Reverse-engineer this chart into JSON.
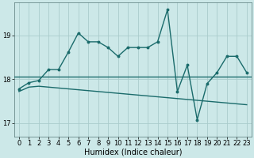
{
  "title": "",
  "xlabel": "Humidex (Indice chaleur)",
  "bg_color": "#cce8e8",
  "grid_color": "#aacccc",
  "line_color": "#1a6b6b",
  "hline_color": "#1a6b6b",
  "ylim": [
    16.7,
    19.75
  ],
  "xlim": [
    -0.5,
    23.5
  ],
  "yticks": [
    17,
    18,
    19
  ],
  "xticks": [
    0,
    1,
    2,
    3,
    4,
    5,
    6,
    7,
    8,
    9,
    10,
    11,
    12,
    13,
    14,
    15,
    16,
    17,
    18,
    19,
    20,
    21,
    22,
    23
  ],
  "curve1_x": [
    0,
    1,
    2,
    3,
    4,
    5,
    6,
    7,
    8,
    9,
    10,
    11,
    12,
    13,
    14,
    15,
    16,
    17,
    18,
    19,
    20,
    21,
    22,
    23
  ],
  "curve1_y": [
    17.78,
    17.92,
    17.97,
    18.22,
    18.22,
    18.62,
    19.05,
    18.85,
    18.85,
    18.72,
    18.52,
    18.72,
    18.72,
    18.72,
    18.85,
    19.58,
    17.72,
    18.32,
    17.08,
    17.9,
    18.15,
    18.52,
    18.52,
    18.15
  ],
  "curve2_x": [
    0,
    1,
    2,
    3,
    4,
    5,
    6,
    7,
    8,
    9,
    10,
    11,
    12,
    13,
    14,
    15,
    16,
    17,
    18,
    19,
    20,
    21,
    22,
    23
  ],
  "curve2_y": [
    17.72,
    17.82,
    17.84,
    17.82,
    17.8,
    17.78,
    17.76,
    17.74,
    17.72,
    17.7,
    17.68,
    17.66,
    17.64,
    17.62,
    17.6,
    17.58,
    17.56,
    17.54,
    17.52,
    17.5,
    17.48,
    17.46,
    17.44,
    17.42
  ],
  "hline_y": 18.05,
  "marker": ".",
  "markersize": 4,
  "linewidth": 1.0,
  "xlabel_fontsize": 7,
  "tick_fontsize": 6
}
